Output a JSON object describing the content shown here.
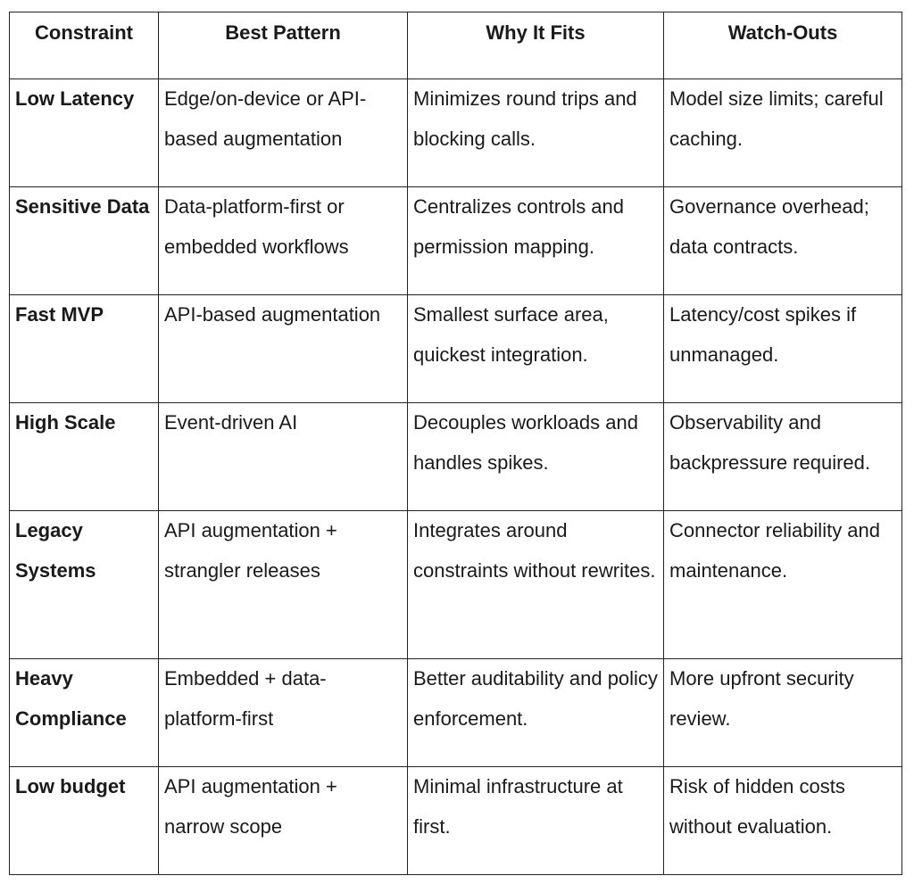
{
  "table": {
    "headers": [
      "Constraint",
      "Best Pattern",
      "Why It Fits",
      "Watch-Outs"
    ],
    "rows": [
      {
        "constraint": "Low Latency",
        "pattern": "Edge/on-device or API-based augmentation",
        "why": "Minimizes round trips and blocking calls.",
        "watch": "Model size limits; careful caching."
      },
      {
        "constraint": "Sensitive Data",
        "pattern": "Data-platform-first or embedded workflows",
        "why": "Centralizes controls and permission mapping.",
        "watch": "Governance overhead; data contracts."
      },
      {
        "constraint": "Fast MVP",
        "pattern": "API-based augmentation",
        "why": "Smallest surface area, quickest integration.",
        "watch": "Latency/cost spikes if unmanaged."
      },
      {
        "constraint": "High Scale",
        "pattern": "Event-driven AI",
        "why": "Decouples workloads and handles spikes.",
        "watch": "Observability and backpressure required."
      },
      {
        "constraint": "Legacy Systems",
        "pattern": "API augmentation + strangler releases",
        "why": "Integrates around constraints without rewrites.",
        "watch": "Connector reliability and maintenance."
      },
      {
        "constraint": "Heavy Compliance",
        "pattern": "Embedded + data-platform-first",
        "why": "Better auditability and policy enforcement.",
        "watch": "More upfront security review."
      },
      {
        "constraint": "Low budget",
        "pattern": "API augmentation + narrow scope",
        "why": "Minimal infrastructure at first.",
        "watch": "Risk of hidden costs without evaluation."
      }
    ]
  }
}
